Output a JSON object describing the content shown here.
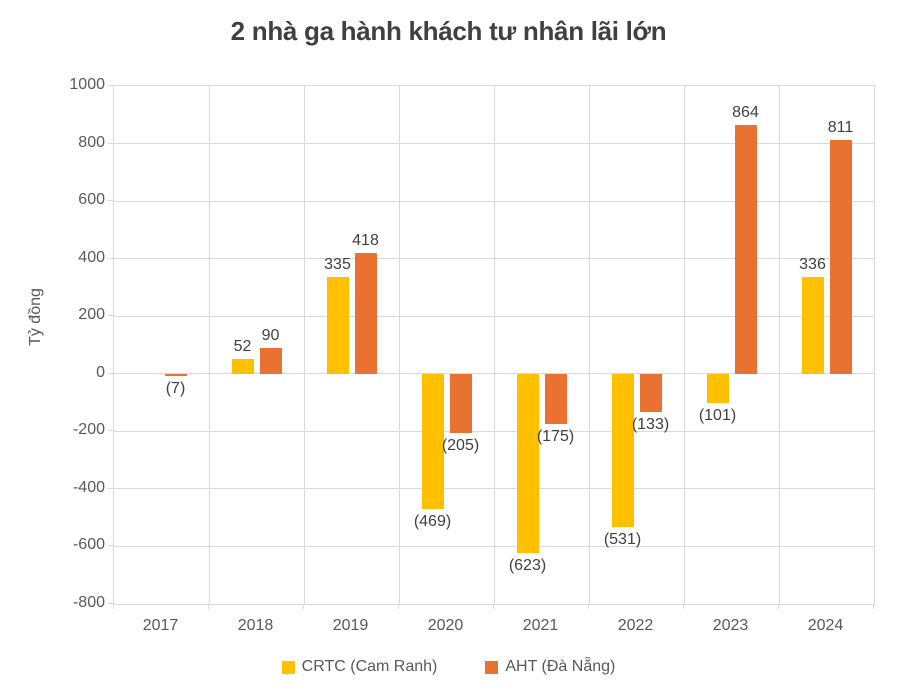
{
  "chart_data": {
    "type": "bar",
    "title": "2 nhà ga hành khách tư nhân lãi lớn",
    "xlabel": "",
    "ylabel": "Tỷ đồng",
    "categories": [
      "2017",
      "2018",
      "2019",
      "2020",
      "2021",
      "2022",
      "2023",
      "2024"
    ],
    "series": [
      {
        "name": "CRTC  (Cam Ranh)",
        "key": "crtc",
        "color": "#FFC000",
        "values": [
          null,
          52,
          335,
          -469,
          -623,
          -531,
          -101,
          336
        ],
        "labels": [
          "",
          "52",
          "335",
          "(469)",
          "(623)",
          "(531)",
          "(101)",
          "336"
        ]
      },
      {
        "name": "AHT (Đà Nẵng)",
        "key": "aht",
        "color": "#E97132",
        "values": [
          -7,
          90,
          418,
          -205,
          -175,
          -133,
          864,
          811
        ],
        "labels": [
          "(7)",
          "90",
          "418",
          "(205)",
          "(175)",
          "(133)",
          "864",
          "811"
        ]
      }
    ],
    "ylim": [
      -800,
      1000
    ],
    "yticks": [
      1000,
      800,
      600,
      400,
      200,
      0,
      -200,
      -400,
      -600,
      -800
    ],
    "grid": true,
    "legend_position": "bottom",
    "negative_label_format": "parentheses"
  },
  "colors": {
    "background": "#FFFFFF",
    "title_text": "#404040",
    "axis_text": "#595959",
    "data_label_text": "#404040",
    "gridline": "#D9D9D9"
  }
}
